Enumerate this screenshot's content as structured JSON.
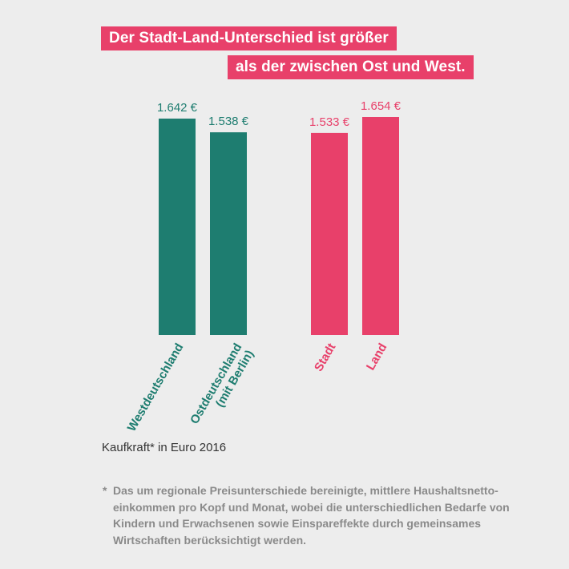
{
  "title": {
    "line1": "Der Stadt-Land-Unterschied ist größer",
    "line2": "als der zwischen Ost und West."
  },
  "colors": {
    "background": "#ededed",
    "teal": "#1e7d70",
    "pink": "#e8406a",
    "footnote": "#8a8a8a"
  },
  "chart_data": {
    "type": "bar",
    "categories": [
      "Westdeutschland",
      "Ostdeutschland\n(mit Berlin)",
      "Stadt",
      "Land"
    ],
    "values": [
      1642,
      1538,
      1533,
      1654
    ],
    "value_labels": [
      "1.642 €",
      "1.538 €",
      "1.533 €",
      "1.654 €"
    ],
    "groups": [
      {
        "categories": [
          "Westdeutschland",
          "Ostdeutschland\n(mit Berlin)"
        ],
        "color": "#1e7d70"
      },
      {
        "categories": [
          "Stadt",
          "Land"
        ],
        "color": "#e8406a"
      }
    ],
    "ylim": [
      0,
      1654
    ],
    "title": "Der Stadt-Land-Unterschied ist größer als der zwischen Ost und West.",
    "ylabel": "Kaufkraft* in Euro 2016",
    "grid": false
  },
  "unit_note": "Kaufkraft* in Euro 2016",
  "footnote": {
    "star": "*",
    "lines": [
      "Das um regionale Preisunterschiede bereinigte, mittlere Haushaltsnetto-",
      "einkommen pro Kopf und Monat, wobei die unterschiedlichen Bedarfe von",
      "Kindern und Erwachsenen sowie Einspareffekte durch gemeinsames",
      "Wirtschaften berücksichtigt werden."
    ]
  }
}
